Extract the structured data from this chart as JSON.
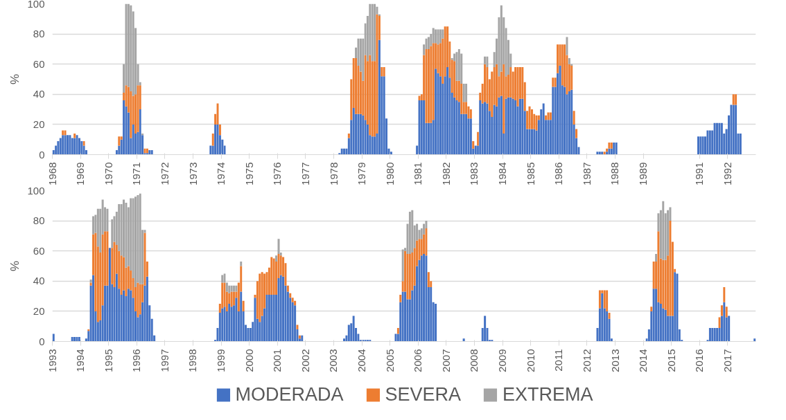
{
  "chart_data": [
    {
      "type": "bar",
      "stacked": true,
      "ylabel": "%",
      "ylim": [
        0,
        100
      ],
      "yticks": [
        0,
        20,
        40,
        60,
        80,
        100
      ],
      "grid": "y",
      "xlim": [
        "1968-01",
        "1993-01"
      ],
      "xticks": [
        "1968",
        "1969",
        "1970",
        "1971",
        "1972",
        "1973",
        "1974",
        "1975",
        "1976",
        "1977",
        "1978",
        "1979",
        "1980",
        "1981",
        "1982",
        "1983",
        "1984",
        "1985",
        "1986",
        "1987",
        "1988",
        "1989",
        "1991",
        "1992"
      ],
      "x": [
        "1968-01",
        "1968-02",
        "1968-03",
        "1968-04",
        "1968-05",
        "1968-06",
        "1968-07",
        "1968-08",
        "1968-09",
        "1968-10",
        "1968-11",
        "1968-12",
        "1969-01",
        "1969-02",
        "1969-03",
        "1970-04",
        "1970-05",
        "1970-06",
        "1970-07",
        "1970-08",
        "1970-09",
        "1970-10",
        "1970-11",
        "1970-12",
        "1971-01",
        "1971-02",
        "1971-03",
        "1971-04",
        "1971-05",
        "1971-06",
        "1971-07",
        "1973-08",
        "1973-09",
        "1973-10",
        "1973-11",
        "1973-12",
        "1974-01",
        "1974-02",
        "1978-03",
        "1978-04",
        "1978-05",
        "1978-06",
        "1978-07",
        "1978-08",
        "1978-09",
        "1978-10",
        "1978-11",
        "1978-12",
        "1979-01",
        "1979-02",
        "1979-03",
        "1979-04",
        "1979-05",
        "1979-06",
        "1979-07",
        "1979-08",
        "1979-09",
        "1979-10",
        "1979-11",
        "1979-12",
        "1980-01",
        "1980-12",
        "1981-01",
        "1981-02",
        "1981-03",
        "1981-04",
        "1981-05",
        "1981-06",
        "1981-07",
        "1981-08",
        "1981-09",
        "1981-10",
        "1981-11",
        "1981-12",
        "1982-01",
        "1982-02",
        "1982-03",
        "1982-04",
        "1982-05",
        "1982-06",
        "1982-07",
        "1982-08",
        "1982-09",
        "1982-10",
        "1982-11",
        "1982-12",
        "1983-01",
        "1983-02",
        "1983-03",
        "1983-04",
        "1983-05",
        "1983-06",
        "1983-07",
        "1983-08",
        "1983-09",
        "1983-10",
        "1983-11",
        "1983-12",
        "1984-01",
        "1984-02",
        "1984-03",
        "1984-04",
        "1984-05",
        "1984-06",
        "1984-07",
        "1984-08",
        "1984-09",
        "1984-10",
        "1984-11",
        "1984-12",
        "1985-01",
        "1985-02",
        "1985-03",
        "1985-04",
        "1985-05",
        "1985-06",
        "1985-07",
        "1985-08",
        "1985-09",
        "1985-10",
        "1985-11",
        "1985-12",
        "1986-01",
        "1986-02",
        "1986-03",
        "1986-04",
        "1986-05",
        "1986-06",
        "1986-07",
        "1986-08",
        "1986-09",
        "1987-05",
        "1987-06",
        "1987-07",
        "1987-08",
        "1987-09",
        "1987-10",
        "1987-11",
        "1987-12",
        "1988-01",
        "1990-12",
        "1991-01",
        "1991-02",
        "1991-03",
        "1991-04",
        "1991-05",
        "1991-06",
        "1991-07",
        "1991-08",
        "1991-09",
        "1991-10",
        "1991-11",
        "1991-12",
        "1992-01",
        "1992-02",
        "1992-03",
        "1992-04",
        "1992-05",
        "1992-06"
      ],
      "series": [
        {
          "color": "#4472c4",
          "values": [
            3,
            6,
            9,
            11,
            13,
            13,
            13,
            13,
            11,
            11,
            13,
            11,
            9,
            6,
            3,
            3,
            6,
            10,
            36,
            32,
            28,
            11,
            20,
            14,
            15,
            30,
            13,
            1,
            1,
            3,
            3,
            6,
            6,
            20,
            20,
            13,
            10,
            6,
            1,
            4,
            4,
            4,
            11,
            23,
            31,
            27,
            27,
            27,
            26,
            23,
            20,
            13,
            12,
            12,
            14,
            76,
            52,
            52,
            24,
            4,
            2,
            6,
            36,
            36,
            36,
            21,
            21,
            21,
            23,
            57,
            54,
            52,
            47,
            52,
            58,
            51,
            41,
            38,
            36,
            35,
            27,
            27,
            27,
            24,
            24,
            4,
            6,
            6,
            36,
            34,
            35,
            34,
            29,
            25,
            33,
            32,
            38,
            39,
            14,
            37,
            38,
            38,
            37,
            36,
            32,
            37,
            37,
            29,
            17,
            17,
            17,
            17,
            16,
            23,
            30,
            34,
            23,
            23,
            23,
            45,
            45,
            54,
            59,
            46,
            45,
            40,
            42,
            43,
            20,
            11,
            5,
            2,
            2,
            2,
            0,
            2,
            4,
            4,
            8,
            8,
            12,
            12,
            12,
            12,
            16,
            16,
            16,
            21,
            21,
            21,
            21,
            14,
            17,
            26,
            33,
            33,
            33,
            14,
            14
          ]
        },
        {
          "color": "#ed7d31",
          "values": [
            0,
            0,
            0,
            0,
            3,
            3,
            0,
            0,
            0,
            3,
            0,
            0,
            0,
            3,
            0,
            0,
            6,
            2,
            5,
            14,
            17,
            31,
            19,
            26,
            31,
            16,
            0,
            3,
            3,
            0,
            0,
            0,
            8,
            7,
            14,
            7,
            0,
            0,
            0,
            0,
            0,
            0,
            3,
            27,
            33,
            37,
            32,
            28,
            23,
            43,
            42,
            53,
            50,
            50,
            79,
            16,
            6,
            6,
            0,
            0,
            0,
            0,
            3,
            4,
            30,
            49,
            49,
            51,
            51,
            17,
            19,
            22,
            30,
            33,
            27,
            24,
            22,
            24,
            13,
            14,
            20,
            8,
            8,
            8,
            6,
            5,
            0,
            9,
            5,
            13,
            25,
            24,
            21,
            30,
            25,
            28,
            14,
            16,
            46,
            15,
            15,
            20,
            18,
            22,
            26,
            21,
            21,
            19,
            12,
            15,
            13,
            10,
            10,
            3,
            0,
            0,
            3,
            5,
            5,
            6,
            6,
            19,
            14,
            27,
            28,
            26,
            18,
            16,
            9,
            6,
            0,
            0,
            0,
            0,
            2,
            2,
            4,
            4,
            0,
            0,
            0,
            0,
            0,
            0,
            0,
            0,
            0,
            0,
            0,
            0,
            0,
            0,
            0,
            0,
            0,
            7,
            7,
            0,
            0
          ]
        },
        {
          "color": "#a5a5a5",
          "values": [
            0,
            0,
            0,
            0,
            0,
            0,
            0,
            0,
            0,
            0,
            0,
            0,
            0,
            0,
            0,
            0,
            0,
            0,
            19,
            54,
            55,
            57,
            56,
            44,
            14,
            2,
            1,
            0,
            0,
            0,
            0,
            0,
            0,
            0,
            0,
            0,
            0,
            0,
            0,
            0,
            0,
            0,
            0,
            0,
            0,
            7,
            18,
            22,
            28,
            21,
            30,
            34,
            38,
            38,
            5,
            1,
            0,
            0,
            0,
            0,
            0,
            0,
            0,
            0,
            7,
            7,
            8,
            8,
            10,
            9,
            10,
            9,
            6,
            0,
            0,
            0,
            1,
            5,
            19,
            21,
            20,
            12,
            12,
            0,
            0,
            0,
            0,
            0,
            0,
            0,
            5,
            7,
            0,
            0,
            10,
            17,
            39,
            44,
            31,
            32,
            23,
            9,
            0,
            0,
            0,
            0,
            0,
            0,
            0,
            0,
            0,
            0,
            0,
            0,
            0,
            0,
            0,
            0,
            0,
            0,
            0,
            0,
            0,
            0,
            0,
            12,
            4,
            1,
            0,
            0,
            0,
            0,
            0,
            0,
            0,
            0,
            0,
            0,
            0,
            0,
            0,
            0,
            0,
            0,
            0,
            0,
            0,
            0,
            0,
            0,
            0,
            0,
            0,
            0,
            0,
            0,
            0,
            0,
            0
          ]
        }
      ]
    },
    {
      "type": "bar",
      "stacked": true,
      "ylabel": "%",
      "ylim": [
        0,
        100
      ],
      "yticks": [
        0,
        20,
        40,
        60,
        80,
        100
      ],
      "grid": "y",
      "legend": "bottom",
      "xlim": [
        "1993-01",
        "2018-01"
      ],
      "xticks": [
        "1993",
        "1994",
        "1995",
        "1996",
        "1997",
        "1998",
        "1999",
        "2000",
        "2001",
        "2002",
        "2003",
        "2004",
        "2005",
        "2006",
        "2007",
        "2008",
        "2009",
        "2010",
        "2011",
        "2012",
        "2013",
        "2014",
        "2015",
        "2016",
        "2017"
      ],
      "x": [
        "1993-01",
        "1993-09",
        "1993-10",
        "1993-11",
        "1993-12",
        "1994-03",
        "1994-04",
        "1994-05",
        "1994-06",
        "1994-07",
        "1994-08",
        "1994-09",
        "1994-10",
        "1994-11",
        "1994-12",
        "1995-01",
        "1995-02",
        "1995-03",
        "1995-04",
        "1995-05",
        "1995-06",
        "1995-07",
        "1995-08",
        "1995-09",
        "1995-10",
        "1995-11",
        "1995-12",
        "1996-01",
        "1996-02",
        "1996-03",
        "1996-04",
        "1996-05",
        "1996-06",
        "1996-07",
        "1996-08",
        "1998-10",
        "1998-11",
        "1998-12",
        "1999-01",
        "1999-02",
        "1999-03",
        "1999-04",
        "1999-05",
        "1999-06",
        "1999-07",
        "1999-08",
        "1999-09",
        "1999-10",
        "1999-11",
        "1999-12",
        "2000-01",
        "2000-02",
        "2000-03",
        "2000-04",
        "2000-05",
        "2000-06",
        "2000-07",
        "2000-08",
        "2000-09",
        "2000-10",
        "2000-11",
        "2000-12",
        "2001-01",
        "2001-02",
        "2001-03",
        "2001-04",
        "2001-05",
        "2001-06",
        "2001-07",
        "2001-08",
        "2001-09",
        "2001-10",
        "2001-11",
        "2003-05",
        "2003-06",
        "2003-07",
        "2003-08",
        "2003-09",
        "2003-10",
        "2003-11",
        "2003-12",
        "2004-01",
        "2004-02",
        "2004-03",
        "2004-04",
        "2005-03",
        "2005-04",
        "2005-05",
        "2005-06",
        "2005-07",
        "2005-08",
        "2005-09",
        "2005-10",
        "2005-11",
        "2005-12",
        "2006-01",
        "2006-02",
        "2006-03",
        "2006-04",
        "2006-05",
        "2006-06",
        "2006-07",
        "2006-08",
        "2007-08",
        "2008-04",
        "2008-05",
        "2008-06",
        "2008-07",
        "2008-08",
        "2012-05",
        "2012-06",
        "2012-07",
        "2012-08",
        "2012-09",
        "2012-10",
        "2012-11",
        "2014-02",
        "2014-03",
        "2014-04",
        "2014-05",
        "2014-06",
        "2014-07",
        "2014-08",
        "2014-09",
        "2014-10",
        "2014-11",
        "2014-12",
        "2015-01",
        "2015-02",
        "2015-03",
        "2015-04",
        "2015-05",
        "2016-04",
        "2016-05",
        "2016-06",
        "2016-07",
        "2016-08",
        "2016-09",
        "2016-10",
        "2016-11",
        "2016-12",
        "2017-01",
        "2017-12"
      ],
      "series": [
        {
          "name": "MODERADA",
          "color": "#4472c4",
          "values": [
            5,
            3,
            3,
            3,
            3,
            2,
            7,
            37,
            44,
            20,
            13,
            14,
            24,
            37,
            37,
            62,
            38,
            36,
            45,
            35,
            31,
            34,
            30,
            35,
            34,
            29,
            20,
            16,
            18,
            26,
            37,
            43,
            24,
            15,
            4,
            1,
            9,
            19,
            22,
            23,
            20,
            25,
            23,
            24,
            29,
            20,
            33,
            20,
            11,
            9,
            9,
            13,
            29,
            15,
            13,
            17,
            22,
            31,
            31,
            31,
            31,
            31,
            42,
            44,
            43,
            37,
            33,
            29,
            26,
            24,
            8,
            2,
            4,
            2,
            4,
            11,
            12,
            17,
            9,
            5,
            1,
            1,
            1,
            1,
            1,
            5,
            5,
            26,
            33,
            33,
            28,
            28,
            34,
            37,
            50,
            54,
            57,
            58,
            57,
            36,
            36,
            26,
            25,
            2,
            9,
            17,
            9,
            1,
            1,
            9,
            22,
            32,
            22,
            20,
            15,
            2,
            2,
            8,
            20,
            35,
            35,
            26,
            25,
            22,
            21,
            17,
            17,
            17,
            46,
            45,
            8,
            1,
            1,
            9,
            9,
            9,
            9,
            9,
            17,
            26,
            16,
            17,
            2
          ]
        },
        {
          "name": "SEVERA",
          "color": "#ed7d31",
          "values": [
            0,
            0,
            0,
            0,
            0,
            0,
            1,
            2,
            27,
            52,
            50,
            45,
            47,
            36,
            36,
            0,
            24,
            30,
            19,
            25,
            26,
            22,
            19,
            15,
            13,
            13,
            16,
            23,
            20,
            12,
            35,
            10,
            0,
            0,
            0,
            0,
            0,
            6,
            17,
            16,
            13,
            7,
            10,
            9,
            4,
            19,
            17,
            7,
            0,
            0,
            0,
            0,
            2,
            25,
            32,
            29,
            23,
            15,
            18,
            25,
            24,
            22,
            16,
            13,
            13,
            15,
            4,
            3,
            3,
            3,
            3,
            2,
            0,
            0,
            0,
            0,
            0,
            0,
            0,
            0,
            0,
            0,
            0,
            0,
            0,
            0,
            4,
            5,
            7,
            27,
            30,
            30,
            25,
            25,
            17,
            14,
            11,
            13,
            18,
            10,
            4,
            0,
            0,
            0,
            0,
            0,
            0,
            0,
            0,
            0,
            12,
            2,
            12,
            14,
            4,
            0,
            0,
            0,
            3,
            18,
            18,
            47,
            30,
            32,
            33,
            40,
            63,
            49,
            2,
            0,
            0,
            0,
            0,
            0,
            0,
            0,
            0,
            7,
            7,
            10,
            7,
            0,
            0
          ]
        },
        {
          "name": "EXTREMA",
          "color": "#a5a5a5",
          "values": [
            0,
            0,
            0,
            0,
            0,
            0,
            0,
            2,
            12,
            12,
            25,
            29,
            23,
            16,
            15,
            0,
            19,
            17,
            22,
            31,
            34,
            38,
            43,
            39,
            48,
            53,
            60,
            58,
            60,
            36,
            2,
            0,
            0,
            0,
            0,
            0,
            0,
            0,
            5,
            6,
            6,
            5,
            4,
            4,
            4,
            0,
            3,
            0,
            0,
            0,
            0,
            0,
            0,
            0,
            0,
            0,
            0,
            0,
            0,
            0,
            0,
            4,
            10,
            2,
            0,
            0,
            0,
            0,
            0,
            0,
            0,
            0,
            0,
            0,
            0,
            0,
            0,
            0,
            0,
            0,
            0,
            0,
            0,
            0,
            0,
            0,
            0,
            0,
            21,
            2,
            20,
            28,
            28,
            15,
            11,
            6,
            7,
            7,
            5,
            0,
            0,
            0,
            0,
            0,
            0,
            0,
            0,
            0,
            0,
            0,
            0,
            0,
            0,
            0,
            0,
            0,
            0,
            0,
            0,
            0,
            5,
            12,
            32,
            39,
            31,
            30,
            9,
            0,
            0,
            0,
            0,
            0,
            0,
            0,
            0,
            0,
            0,
            0,
            0,
            0,
            0,
            0,
            0
          ]
        }
      ]
    }
  ]
}
